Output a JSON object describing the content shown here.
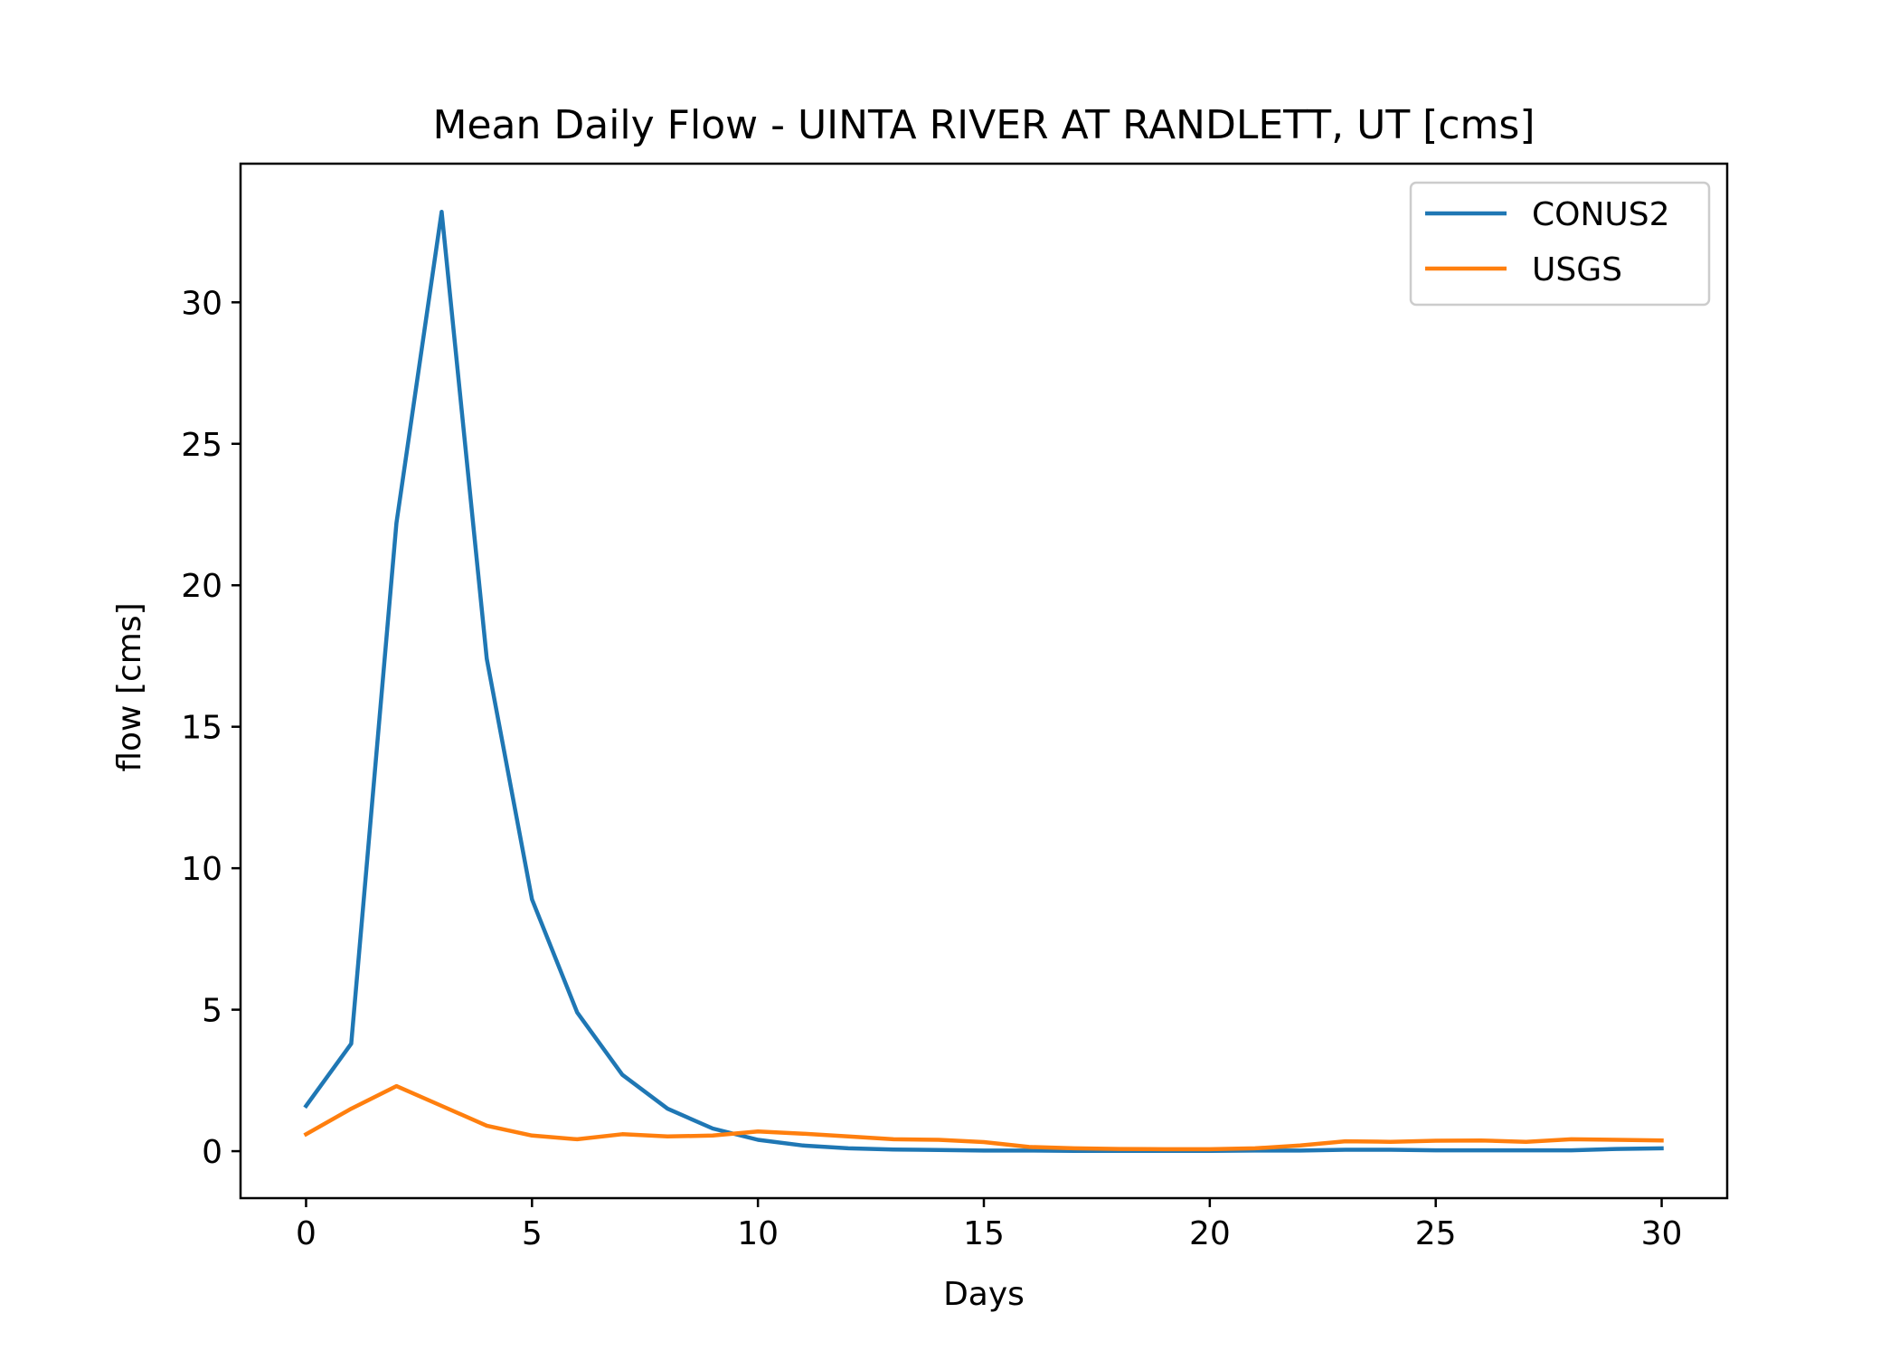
{
  "chart_data": {
    "type": "line",
    "title": "Mean Daily Flow - UINTA RIVER AT RANDLETT, UT [cms]",
    "xlabel": "Days",
    "ylabel": "flow [cms]",
    "xlim": [
      -1.45,
      31.45
    ],
    "ylim": [
      -1.66,
      34.9
    ],
    "xticks": [
      0,
      5,
      10,
      15,
      20,
      25,
      30
    ],
    "yticks": [
      0,
      5,
      10,
      15,
      20,
      25,
      30
    ],
    "grid": false,
    "legend_position": "top-right",
    "x": [
      0,
      1,
      2,
      3,
      4,
      5,
      6,
      7,
      8,
      9,
      10,
      11,
      12,
      13,
      14,
      15,
      16,
      17,
      18,
      19,
      20,
      21,
      22,
      23,
      24,
      25,
      26,
      27,
      28,
      29,
      30
    ],
    "series": [
      {
        "name": "CONUS2",
        "color": "#1f77b4",
        "values": [
          1.6,
          3.8,
          22.2,
          33.2,
          17.4,
          8.9,
          4.9,
          2.7,
          1.5,
          0.8,
          0.4,
          0.2,
          0.1,
          0.06,
          0.04,
          0.02,
          0.02,
          0.01,
          0.01,
          0.01,
          0.01,
          0.02,
          0.02,
          0.05,
          0.05,
          0.03,
          0.03,
          0.03,
          0.03,
          0.08,
          0.1
        ]
      },
      {
        "name": "USGS",
        "color": "#ff7f0e",
        "values": [
          0.6,
          1.5,
          2.3,
          1.6,
          0.9,
          0.55,
          0.42,
          0.6,
          0.52,
          0.55,
          0.7,
          0.62,
          0.52,
          0.42,
          0.4,
          0.32,
          0.15,
          0.1,
          0.08,
          0.07,
          0.07,
          0.1,
          0.2,
          0.35,
          0.33,
          0.37,
          0.38,
          0.33,
          0.42,
          0.4,
          0.38
        ]
      }
    ]
  }
}
